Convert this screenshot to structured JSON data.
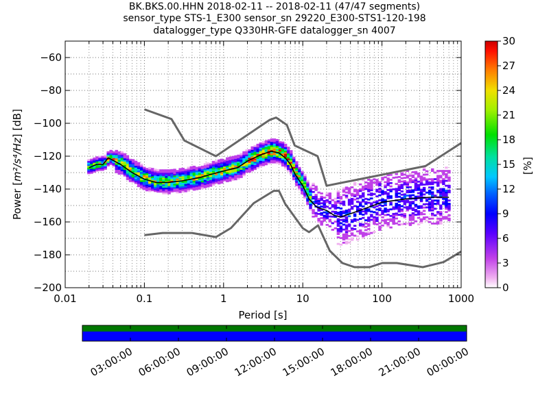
{
  "title_lines": [
    "BK.BKS.00.HHN   2018-02-11 -- 2018-02-11  (47/47 segments)",
    "sensor_type STS-1_E300 sensor_sn 29220_E300-STS1-120-198",
    "datalogger_type Q330HR-GFE datalogger_sn 4007"
  ],
  "colorbar": {
    "label": "[%]",
    "ticks": [
      "0",
      "3",
      "6",
      "9",
      "12",
      "15",
      "18",
      "21",
      "24",
      "27",
      "30"
    ],
    "range": [
      0,
      30
    ]
  },
  "chart_data": [
    {
      "type": "heatmap",
      "description_kind": "probabilistic power spectral density",
      "xlabel": "Period [s]",
      "ylabel": "Power [m²/s⁴/Hz] [dB]",
      "xscale": "log",
      "xlim": [
        0.01,
        1000
      ],
      "ylim": [
        -200,
        -50
      ],
      "xticks": [
        "0.01",
        "0.1",
        "1",
        "10",
        "100",
        "1000"
      ],
      "yticks": [
        "−200",
        "−180",
        "−160",
        "−140",
        "−120",
        "−100",
        "−80",
        "−60"
      ],
      "grid": true,
      "series": [
        {
          "name": "NHNM",
          "color": "#666666",
          "x": [
            0.1,
            0.22,
            0.32,
            0.8,
            3.8,
            4.6,
            6.3,
            7.9,
            15.4,
            20,
            354.8,
            1000
          ],
          "y": [
            -91.5,
            -97.4,
            -110.5,
            -120,
            -98,
            -96.5,
            -101,
            -113.5,
            -120,
            -138,
            -126,
            -112
          ]
        },
        {
          "name": "NLNM",
          "color": "#666666",
          "x": [
            0.1,
            0.17,
            0.4,
            0.8,
            1.24,
            2.4,
            4.3,
            5,
            6,
            10,
            12,
            15.6,
            21.9,
            31.6,
            45,
            70,
            101,
            154,
            328,
            600,
            1000
          ],
          "y": [
            -168,
            -166.7,
            -166.7,
            -169.2,
            -163.7,
            -148.6,
            -141.1,
            -141.1,
            -149,
            -163.8,
            -166.2,
            -162.1,
            -177.5,
            -185,
            -187.5,
            -187.5,
            -185,
            -185,
            -187.5,
            -184.4,
            -178
          ]
        },
        {
          "name": "Mean PSD",
          "color": "#000000",
          "x": [
            0.02,
            0.025,
            0.03,
            0.035,
            0.05,
            0.07,
            0.1,
            0.14,
            0.2,
            0.3,
            0.5,
            0.7,
            1,
            1.5,
            2,
            3,
            4,
            5,
            6,
            7,
            8,
            10,
            12,
            15,
            20,
            25,
            30,
            40,
            60,
            100,
            200,
            400,
            700
          ],
          "y": [
            -127,
            -125,
            -125,
            -121,
            -125,
            -130,
            -134,
            -136,
            -136,
            -135,
            -133,
            -131,
            -129,
            -127,
            -123,
            -119,
            -117,
            -118,
            -121,
            -125,
            -131,
            -138,
            -146,
            -151,
            -153,
            -156,
            -157,
            -155,
            -152,
            -148,
            -146,
            -145,
            -145
          ]
        }
      ]
    },
    {
      "type": "heatmap",
      "description_kind": "data availability timeline",
      "xticks": [
        "03:00:00",
        "06:00:00",
        "09:00:00",
        "12:00:00",
        "15:00:00",
        "18:00:00",
        "21:00:00",
        "00:00:00"
      ],
      "rows": [
        {
          "color": "#007700",
          "coverage": 1.0
        },
        {
          "color": "#0000ff",
          "coverage": 1.0
        }
      ]
    }
  ]
}
